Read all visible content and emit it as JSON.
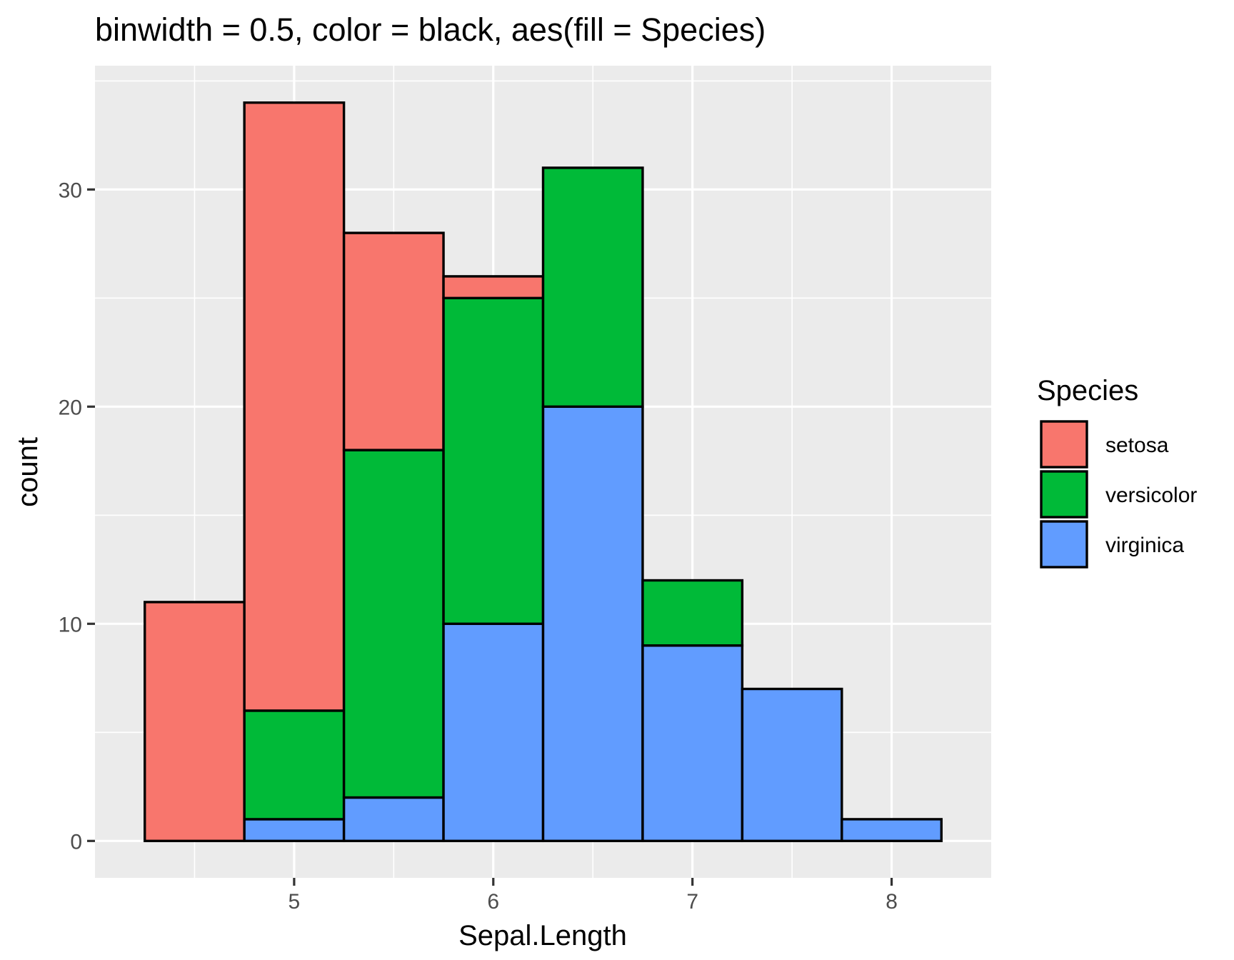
{
  "chart_data": {
    "type": "histogram",
    "title": "binwidth =  0.5, color = black, aes(fill = Species)",
    "xlabel": "Sepal.Length",
    "ylabel": "count",
    "xlim": [
      4.0,
      8.5
    ],
    "ylim": [
      -1.7,
      35.7
    ],
    "x_ticks": [
      5,
      6,
      7,
      8
    ],
    "y_ticks": [
      0,
      10,
      20,
      30
    ],
    "grid": true,
    "stacked": true,
    "bar_outline_color": "#000000",
    "panel_background": "#ebebeb",
    "bins": [
      {
        "center": 4.5,
        "values": {
          "setosa": 11,
          "versicolor": 0,
          "virginica": 0
        }
      },
      {
        "center": 5.0,
        "values": {
          "setosa": 28,
          "versicolor": 5,
          "virginica": 1
        }
      },
      {
        "center": 5.5,
        "values": {
          "setosa": 10,
          "versicolor": 16,
          "virginica": 2
        }
      },
      {
        "center": 6.0,
        "values": {
          "setosa": 1,
          "versicolor": 15,
          "virginica": 10
        }
      },
      {
        "center": 6.5,
        "values": {
          "setosa": 0,
          "versicolor": 11,
          "virginica": 20
        }
      },
      {
        "center": 7.0,
        "values": {
          "setosa": 0,
          "versicolor": 3,
          "virginica": 9
        }
      },
      {
        "center": 7.5,
        "values": {
          "setosa": 0,
          "versicolor": 0,
          "virginica": 7
        }
      },
      {
        "center": 8.0,
        "values": {
          "setosa": 0,
          "versicolor": 0,
          "virginica": 1
        }
      }
    ],
    "binwidth": 0.5,
    "legend": {
      "title": "Species",
      "position": "right",
      "items": [
        {
          "name": "setosa",
          "color": "#f8766d"
        },
        {
          "name": "versicolor",
          "color": "#00ba38"
        },
        {
          "name": "virginica",
          "color": "#619cff"
        }
      ]
    }
  }
}
